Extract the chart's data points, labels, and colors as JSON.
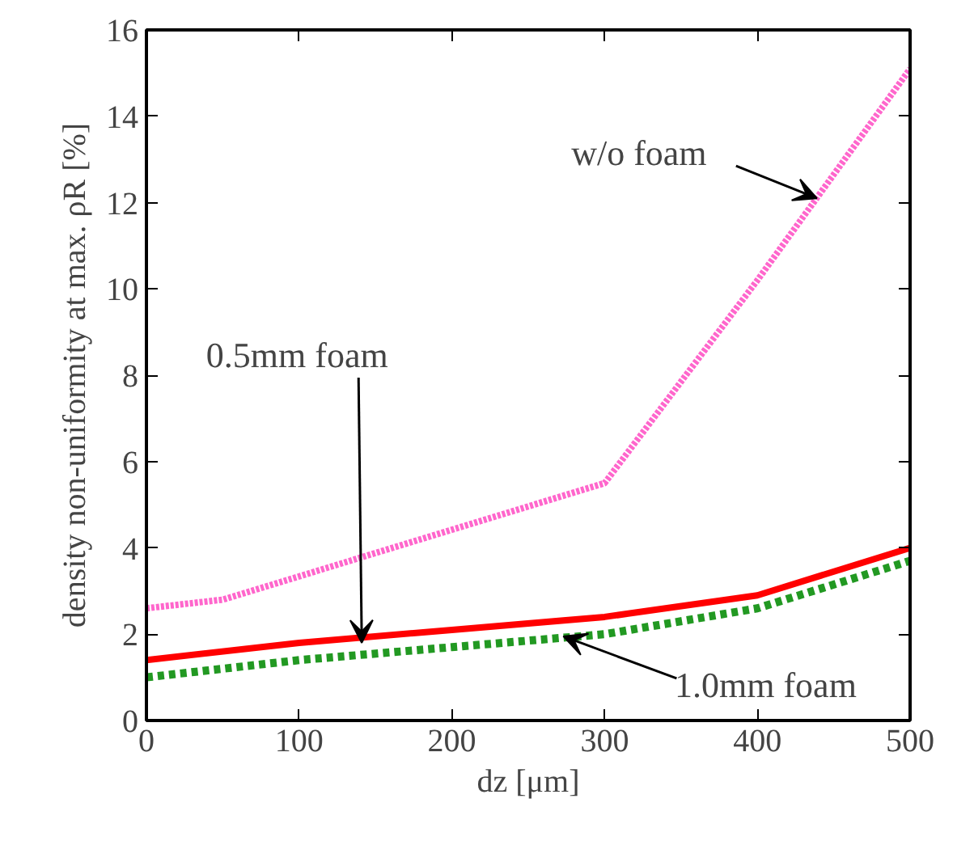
{
  "chart_data": {
    "type": "line",
    "xlabel": "dz [μm]",
    "ylabel": "density non-uniformity at max. ρR [%]",
    "series": [
      {
        "color": "#ff66cc",
        "line_style": "dotted",
        "x": [
          0,
          50,
          300,
          400,
          500
        ],
        "values": [
          2.6,
          2.8,
          5.5,
          10.2,
          15.1
        ]
      },
      {
        "color": "#ff0000",
        "line_style": "solid",
        "x": [
          0,
          100,
          200,
          300,
          400,
          500
        ],
        "values": [
          1.4,
          1.8,
          2.1,
          2.4,
          2.9,
          4.0
        ]
      },
      {
        "color": "#229922",
        "line_style": "dashed",
        "x": [
          0,
          100,
          200,
          300,
          400,
          500
        ],
        "values": [
          1.0,
          1.4,
          1.7,
          2.0,
          2.6,
          3.7
        ]
      }
    ],
    "annotations": [
      {
        "text": "w/o foam",
        "x": 439,
        "y": 12.1
      },
      {
        "text": "0.5mm foam",
        "x": 141,
        "y": 1.8
      },
      {
        "text": "1.0mm foam",
        "x": 273,
        "y": 1.95
      }
    ],
    "xlim": [
      0,
      500
    ],
    "ylim": [
      0,
      16
    ],
    "xticks": [
      0,
      100,
      200,
      300,
      400,
      500
    ],
    "yticks": [
      0,
      2,
      4,
      6,
      8,
      10,
      12,
      14,
      16
    ],
    "grid": false,
    "marker": "none"
  }
}
